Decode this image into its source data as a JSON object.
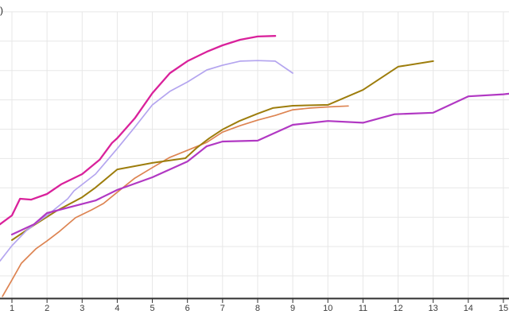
{
  "figure": {
    "partial_label_top_left": ")",
    "background": "#ffffff",
    "gridline_color": "#e7e7e7",
    "axis_color": "#2f2f2f",
    "tick_label_color": "#3a3a3a"
  },
  "chart_data": {
    "type": "line",
    "title": "",
    "xlabel": "",
    "ylabel": "",
    "grid": true,
    "legend": "none",
    "x_axis": {
      "tick_labels": [
        "1",
        "2",
        "3",
        "4",
        "5",
        "6",
        "7",
        "8",
        "9",
        "10",
        "11",
        "12",
        "13",
        "14",
        "15"
      ],
      "range_visible": [
        0.66,
        15.16
      ]
    },
    "y_axis": {
      "tick_labels": [],
      "labels_cropped": true,
      "unit": "gridline index (y tick labels are cropped off-screen; 10 horizontal gridlines visible)",
      "gridlines": [
        1,
        2,
        3,
        4,
        5,
        6,
        7,
        8,
        9,
        10
      ],
      "baseline_value": 0.23
    },
    "series": [
      {
        "name": "orange",
        "color": "#dd8452",
        "width": 1.7,
        "points": [
          [
            0.73,
            0.3
          ],
          [
            1,
            0.86
          ],
          [
            1.27,
            1.43
          ],
          [
            1.68,
            1.92
          ],
          [
            2,
            2.19
          ],
          [
            2.36,
            2.52
          ],
          [
            2.81,
            2.98
          ],
          [
            3.27,
            3.25
          ],
          [
            3.61,
            3.47
          ],
          [
            4,
            3.85
          ],
          [
            4.5,
            4.33
          ],
          [
            5,
            4.69
          ],
          [
            5.5,
            5.04
          ],
          [
            6,
            5.28
          ],
          [
            6.55,
            5.55
          ],
          [
            7,
            5.9
          ],
          [
            7.5,
            6.12
          ],
          [
            8,
            6.31
          ],
          [
            8.5,
            6.47
          ],
          [
            9,
            6.66
          ],
          [
            9.5,
            6.72
          ],
          [
            10,
            6.76
          ],
          [
            10.58,
            6.79
          ]
        ]
      },
      {
        "name": "olive",
        "color": "#9d7d0c",
        "width": 2.0,
        "points": [
          [
            1,
            2.22
          ],
          [
            1.63,
            2.73
          ],
          [
            2.25,
            3.2
          ],
          [
            3,
            3.68
          ],
          [
            3.38,
            4.01
          ],
          [
            4,
            4.63
          ],
          [
            5,
            4.85
          ],
          [
            5.94,
            5.01
          ],
          [
            6.26,
            5.36
          ],
          [
            6.62,
            5.69
          ],
          [
            7,
            5.99
          ],
          [
            7.48,
            6.28
          ],
          [
            8,
            6.53
          ],
          [
            8.43,
            6.72
          ],
          [
            9,
            6.8
          ],
          [
            10,
            6.83
          ],
          [
            11,
            7.34
          ],
          [
            12,
            8.13
          ],
          [
            13,
            8.32
          ]
        ]
      },
      {
        "name": "lavender",
        "color": "#b4a5ef",
        "width": 1.7,
        "points": [
          [
            0.66,
            1.51
          ],
          [
            1,
            2.03
          ],
          [
            1.41,
            2.54
          ],
          [
            1.68,
            2.79
          ],
          [
            2,
            3.06
          ],
          [
            2.59,
            3.63
          ],
          [
            2.77,
            3.9
          ],
          [
            3.38,
            4.47
          ],
          [
            4,
            5.34
          ],
          [
            4.5,
            6.07
          ],
          [
            5,
            6.83
          ],
          [
            5.5,
            7.29
          ],
          [
            6,
            7.61
          ],
          [
            6.55,
            8.02
          ],
          [
            7,
            8.18
          ],
          [
            7.5,
            8.32
          ],
          [
            8,
            8.34
          ],
          [
            8.5,
            8.32
          ],
          [
            9,
            7.91
          ]
        ]
      },
      {
        "name": "purple",
        "color": "#b138c3",
        "width": 2.2,
        "points": [
          [
            1,
            2.41
          ],
          [
            1.63,
            2.76
          ],
          [
            2,
            3.14
          ],
          [
            2.77,
            3.38
          ],
          [
            3.38,
            3.57
          ],
          [
            4,
            3.93
          ],
          [
            5,
            4.36
          ],
          [
            6,
            4.9
          ],
          [
            6.55,
            5.42
          ],
          [
            7,
            5.58
          ],
          [
            8,
            5.61
          ],
          [
            9,
            6.15
          ],
          [
            10,
            6.28
          ],
          [
            11,
            6.22
          ],
          [
            11.9,
            6.51
          ],
          [
            13,
            6.56
          ],
          [
            14,
            7.12
          ],
          [
            15,
            7.19
          ],
          [
            15.16,
            7.21
          ]
        ]
      },
      {
        "name": "magenta",
        "color": "#d9219b",
        "width": 2.3,
        "points": [
          [
            0.66,
            2.76
          ],
          [
            1,
            3.06
          ],
          [
            1.23,
            3.63
          ],
          [
            1.55,
            3.6
          ],
          [
            2,
            3.79
          ],
          [
            2.4,
            4.12
          ],
          [
            3,
            4.47
          ],
          [
            3.5,
            4.96
          ],
          [
            3.85,
            5.53
          ],
          [
            4,
            5.69
          ],
          [
            4.5,
            6.37
          ],
          [
            5,
            7.23
          ],
          [
            5.5,
            7.91
          ],
          [
            6,
            8.32
          ],
          [
            6.55,
            8.64
          ],
          [
            7,
            8.86
          ],
          [
            7.5,
            9.05
          ],
          [
            8,
            9.16
          ],
          [
            8.5,
            9.18
          ]
        ]
      }
    ]
  }
}
